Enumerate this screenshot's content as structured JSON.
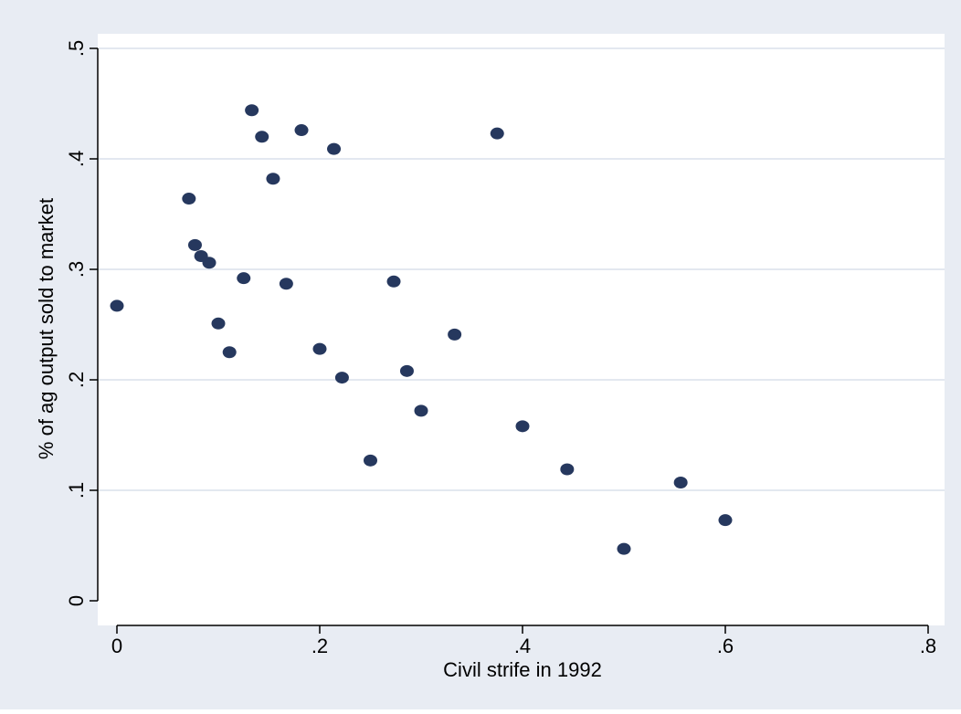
{
  "chart_data": {
    "type": "scatter",
    "title": "",
    "xlabel": "Civil strife in 1992",
    "ylabel": "% of ag output sold to market",
    "xlim": [
      -0.02,
      0.82
    ],
    "ylim": [
      -0.02,
      0.51
    ],
    "x_ticks": [
      0,
      0.2,
      0.4,
      0.6,
      0.8
    ],
    "x_tick_labels": [
      "0",
      ".2",
      ".4",
      ".6",
      ".8"
    ],
    "y_ticks": [
      0,
      0.1,
      0.2,
      0.3,
      0.4,
      0.5
    ],
    "y_tick_labels": [
      "0",
      ".1",
      ".2",
      ".3",
      ".4",
      ".5"
    ],
    "grid": "horizontal",
    "legend": "none",
    "colors": {
      "outer_background": "#e8ecf3",
      "plot_background": "#ffffff",
      "grid": "#e3e8f0",
      "marker": "#26385e"
    },
    "series": [
      {
        "points": [
          {
            "x": 0.0,
            "y": 0.267
          },
          {
            "x": 0.071,
            "y": 0.364
          },
          {
            "x": 0.077,
            "y": 0.322
          },
          {
            "x": 0.083,
            "y": 0.312
          },
          {
            "x": 0.091,
            "y": 0.306
          },
          {
            "x": 0.1,
            "y": 0.251
          },
          {
            "x": 0.111,
            "y": 0.225
          },
          {
            "x": 0.125,
            "y": 0.292
          },
          {
            "x": 0.133,
            "y": 0.444
          },
          {
            "x": 0.143,
            "y": 0.42
          },
          {
            "x": 0.154,
            "y": 0.382
          },
          {
            "x": 0.167,
            "y": 0.287
          },
          {
            "x": 0.182,
            "y": 0.426
          },
          {
            "x": 0.2,
            "y": 0.228
          },
          {
            "x": 0.214,
            "y": 0.409
          },
          {
            "x": 0.222,
            "y": 0.202
          },
          {
            "x": 0.25,
            "y": 0.127
          },
          {
            "x": 0.273,
            "y": 0.289
          },
          {
            "x": 0.286,
            "y": 0.208
          },
          {
            "x": 0.3,
            "y": 0.172
          },
          {
            "x": 0.333,
            "y": 0.241
          },
          {
            "x": 0.375,
            "y": 0.423
          },
          {
            "x": 0.4,
            "y": 0.158
          },
          {
            "x": 0.444,
            "y": 0.119
          },
          {
            "x": 0.5,
            "y": 0.047
          },
          {
            "x": 0.556,
            "y": 0.107
          },
          {
            "x": 0.6,
            "y": 0.073
          }
        ]
      }
    ]
  }
}
